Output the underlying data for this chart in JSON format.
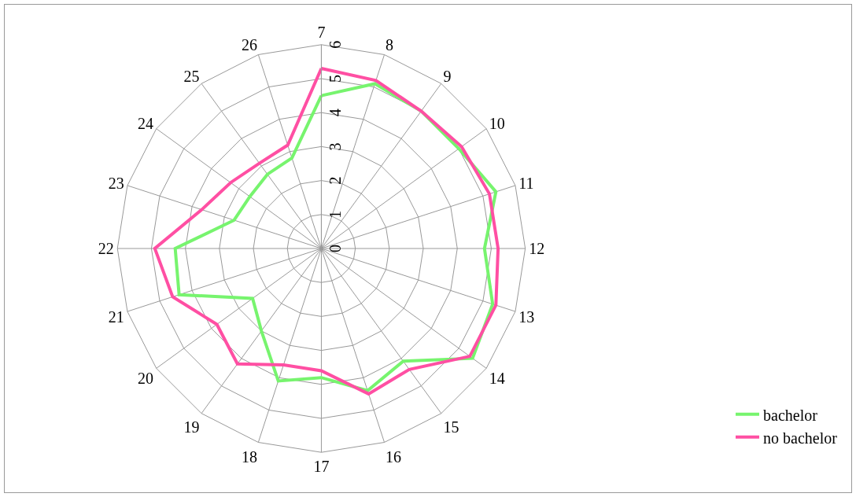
{
  "chart_data": {
    "type": "radar",
    "categories": [
      "7",
      "8",
      "9",
      "10",
      "11",
      "12",
      "13",
      "14",
      "15",
      "16",
      "17",
      "18",
      "19",
      "20",
      "21",
      "22",
      "23",
      "24",
      "25",
      "26"
    ],
    "series": [
      {
        "name": "bachelor",
        "color": "#77f46e",
        "values": [
          4.5,
          5.1,
          5.0,
          5.0,
          5.4,
          4.8,
          5.3,
          5.5,
          4.1,
          4.4,
          3.8,
          4.1,
          3.0,
          2.5,
          4.4,
          4.3,
          2.7,
          2.6,
          2.7,
          2.8
        ]
      },
      {
        "name": "no bachelor",
        "color": "#ff4fa3",
        "values": [
          5.3,
          5.2,
          5.0,
          5.1,
          5.2,
          5.2,
          5.4,
          5.4,
          4.4,
          4.5,
          3.6,
          3.6,
          4.2,
          3.8,
          4.6,
          4.9,
          3.7,
          3.3,
          3.1,
          3.2
        ]
      }
    ],
    "ylim": [
      0,
      6
    ],
    "yticks": [
      0,
      1,
      2,
      3,
      4,
      5,
      6
    ],
    "grid": true,
    "legend": "right",
    "marker": "none",
    "line_style": "solid"
  }
}
